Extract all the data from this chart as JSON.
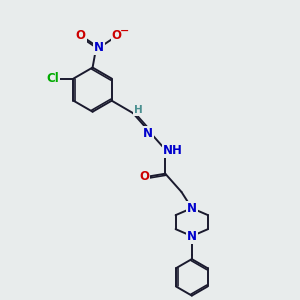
{
  "bg_color": "#e8ecec",
  "bond_color": "#1a1a2e",
  "bond_width": 1.4,
  "atom_colors": {
    "N": "#0000cc",
    "O": "#cc0000",
    "Cl": "#00aa00",
    "H": "#4a9090",
    "C": "#1a1a2e"
  },
  "font_size_atom": 8.5
}
